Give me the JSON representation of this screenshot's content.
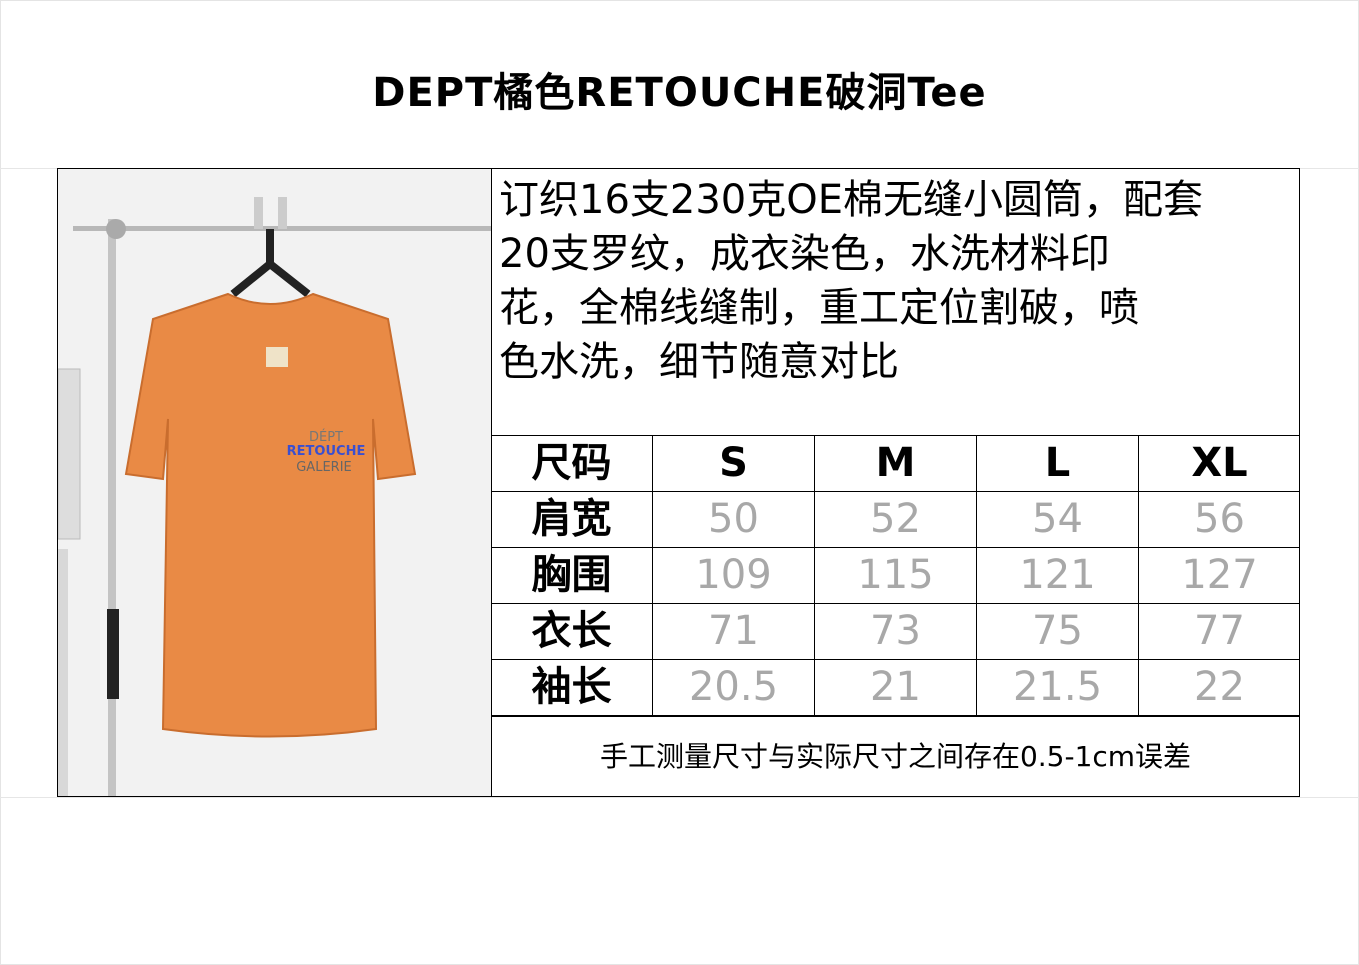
{
  "title": "DEPT橘色RETOUCHE破洞Tee",
  "description": [
    "订织16支230克OE棉无缝小圆筒，配套",
    "20支罗纹，成衣染色，水洗材料印",
    "花，全棉线缝制，重工定位割破，喷",
    "色水洗，细节随意对比"
  ],
  "photo": {
    "shirt_print": [
      "DÉPT",
      "RETOUCHE",
      "GALERIE"
    ],
    "shirt_color": "#e98a45"
  },
  "size_table": {
    "headers": [
      "尺码",
      "S",
      "M",
      "L",
      "XL"
    ],
    "rows": [
      {
        "label": "肩宽",
        "values": [
          "50",
          "52",
          "54",
          "56"
        ]
      },
      {
        "label": "胸围",
        "values": [
          "109",
          "115",
          "121",
          "127"
        ]
      },
      {
        "label": "衣长",
        "values": [
          "71",
          "73",
          "75",
          "77"
        ]
      },
      {
        "label": "袖长",
        "values": [
          "20.5",
          "21",
          "21.5",
          "22"
        ]
      }
    ]
  },
  "footer_note": "手工测量尺寸与实际尺寸之间存在0.5-1cm误差"
}
